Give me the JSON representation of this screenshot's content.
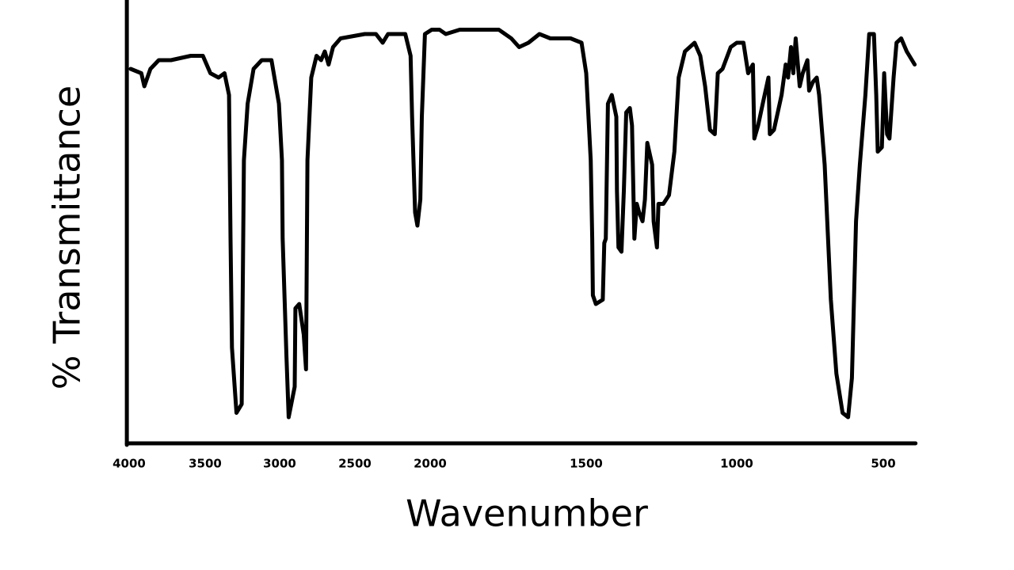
{
  "chart_data": {
    "type": "line",
    "ylabel": "% Transmittance",
    "xlabel": "Wavenumber",
    "color": "#000000",
    "xlim": [
      4015,
      390
    ],
    "ylim": [
      0,
      100
    ],
    "xticks": [
      4000,
      3500,
      3000,
      2500,
      2000,
      1500,
      1000,
      500
    ],
    "yticks": [],
    "grid": false,
    "x": [
      3990,
      3920,
      3900,
      3860,
      3805,
      3725,
      3595,
      3515,
      3465,
      3410,
      3370,
      3340,
      3330,
      3320,
      3290,
      3255,
      3240,
      3215,
      3175,
      3120,
      3055,
      3005,
      2985,
      2980,
      2955,
      2940,
      2900,
      2895,
      2870,
      2840,
      2825,
      2815,
      2790,
      2755,
      2725,
      2700,
      2675,
      2645,
      2595,
      2435,
      2360,
      2315,
      2280,
      2225,
      2165,
      2130,
      2120,
      2100,
      2085,
      2065,
      2055,
      2035,
      1995,
      1970,
      1950,
      1905,
      1855,
      1780,
      1740,
      1715,
      1685,
      1650,
      1615,
      1550,
      1515,
      1500,
      1485,
      1480,
      1478,
      1468,
      1445,
      1440,
      1435,
      1428,
      1415,
      1400,
      1398,
      1393,
      1383,
      1375,
      1367,
      1355,
      1348,
      1340,
      1332,
      1324,
      1313,
      1305,
      1297,
      1281,
      1276,
      1265,
      1260,
      1244,
      1225,
      1207,
      1193,
      1172,
      1140,
      1121,
      1105,
      1089,
      1073,
      1063,
      1047,
      1020,
      1000,
      977,
      961,
      945,
      940,
      927,
      908,
      892,
      887,
      873,
      847,
      833,
      825,
      815,
      807,
      799,
      785,
      775,
      759,
      753,
      740,
      727,
      719,
      700,
      679,
      660,
      639,
      620,
      607,
      593,
      580,
      561,
      548,
      532,
      524,
      519,
      505,
      497,
      487,
      479,
      465,
      455,
      439,
      420,
      393
    ],
    "values": [
      86,
      85,
      82,
      86,
      88,
      88,
      89,
      89,
      85,
      84,
      85,
      80,
      47,
      22,
      7,
      9,
      65,
      78,
      86,
      88,
      88,
      78,
      65,
      47,
      20,
      6,
      13,
      31,
      32,
      25,
      17,
      65,
      84,
      89,
      88,
      90,
      87,
      91,
      93,
      94,
      94,
      92,
      94,
      94,
      94,
      89,
      75,
      53,
      50,
      56,
      75,
      94,
      95,
      95,
      94,
      95,
      95,
      95,
      93,
      91,
      92,
      94,
      93,
      93,
      92,
      85,
      65,
      47,
      34,
      32,
      33,
      46,
      47,
      78,
      80,
      75,
      58,
      45,
      44,
      58,
      76,
      77,
      73,
      47,
      55,
      53,
      51,
      56,
      69,
      64,
      51,
      45,
      55,
      55,
      57,
      67,
      84,
      90,
      92,
      89,
      82,
      72,
      71,
      85,
      86,
      91,
      92,
      92,
      85,
      87,
      70,
      73,
      79,
      84,
      71,
      72,
      80,
      87,
      84,
      91,
      85,
      93,
      82,
      85,
      88,
      81,
      83,
      84,
      80,
      64,
      33,
      16,
      7,
      6,
      15,
      51,
      64,
      80,
      94,
      94,
      80,
      67,
      68,
      85,
      71,
      70,
      84,
      92,
      93,
      90,
      87
    ]
  }
}
